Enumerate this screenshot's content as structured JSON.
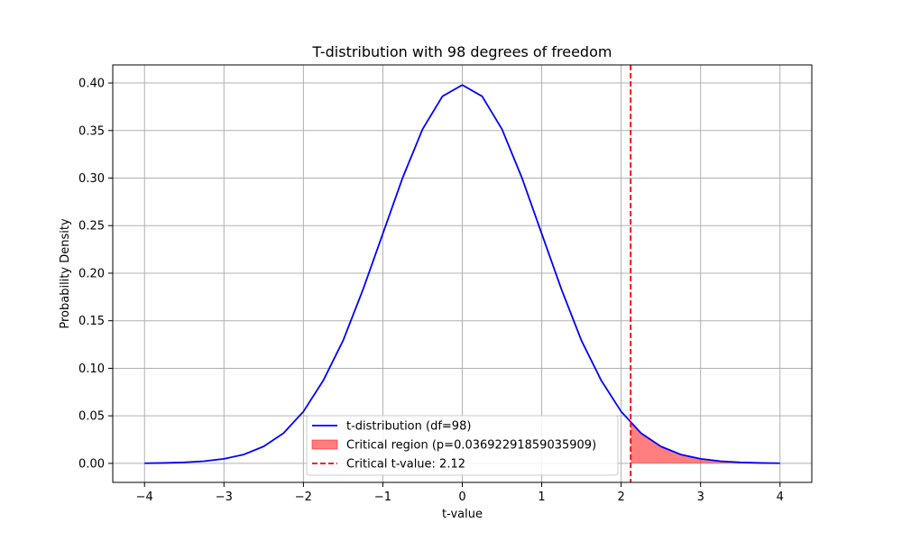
{
  "chart_data": {
    "type": "line",
    "title": "T-distribution with 98 degrees of freedom",
    "xlabel": "t-value",
    "ylabel": "Probability Density",
    "xlim": [
      -4.4,
      4.4
    ],
    "ylim": [
      -0.02,
      0.419
    ],
    "xticks": [
      -4,
      -3,
      -2,
      -1,
      0,
      1,
      2,
      3,
      4
    ],
    "xtick_labels": [
      "−4",
      "−3",
      "−2",
      "−1",
      "0",
      "1",
      "2",
      "3",
      "4"
    ],
    "yticks": [
      0.0,
      0.05,
      0.1,
      0.15,
      0.2,
      0.25,
      0.3,
      0.35,
      0.4
    ],
    "ytick_labels": [
      "0.00",
      "0.05",
      "0.10",
      "0.15",
      "0.20",
      "0.25",
      "0.30",
      "0.35",
      "0.40"
    ],
    "grid": true,
    "legend_position": "bottom-center",
    "series": [
      {
        "name": "t-distribution (df=98)",
        "kind": "line",
        "color": "#0000ff",
        "x": [
          -4.0,
          -3.75,
          -3.5,
          -3.25,
          -3.0,
          -2.75,
          -2.5,
          -2.25,
          -2.0,
          -1.75,
          -1.5,
          -1.25,
          -1.0,
          -0.75,
          -0.5,
          -0.25,
          0.0,
          0.25,
          0.5,
          0.75,
          1.0,
          1.25,
          1.5,
          1.75,
          2.0,
          2.25,
          2.5,
          2.75,
          3.0,
          3.25,
          3.5,
          3.75,
          4.0
        ],
        "y": [
          0.00017,
          0.00044,
          0.0011,
          0.0023,
          0.0048,
          0.0093,
          0.0178,
          0.0318,
          0.0545,
          0.0871,
          0.1292,
          0.1827,
          0.2415,
          0.3005,
          0.3514,
          0.386,
          0.3979,
          0.386,
          0.3514,
          0.3005,
          0.2415,
          0.1827,
          0.1292,
          0.0871,
          0.0545,
          0.0318,
          0.0178,
          0.0093,
          0.0048,
          0.0023,
          0.0011,
          0.00044,
          0.00017
        ]
      },
      {
        "name": "Critical region (p=0.03692291859035909)",
        "kind": "area",
        "color": "#ff0000",
        "x": [
          2.12,
          2.25,
          2.5,
          2.75,
          3.0,
          3.25,
          3.5,
          3.75,
          4.0
        ],
        "y": [
          0.0433,
          0.0318,
          0.0178,
          0.0093,
          0.0048,
          0.0023,
          0.0011,
          0.00044,
          0.00017
        ]
      },
      {
        "name": "Critical t-value: 2.12",
        "kind": "vline",
        "color": "#ff0000",
        "x": 2.12
      }
    ]
  }
}
